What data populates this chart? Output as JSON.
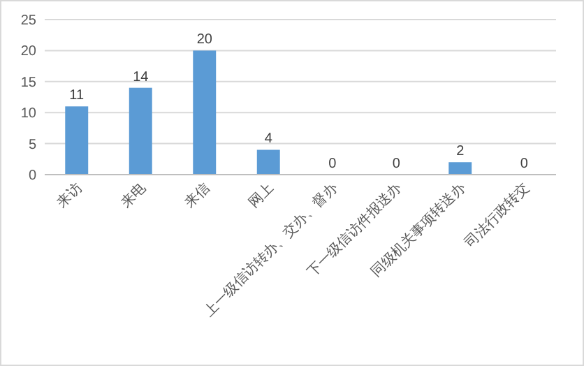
{
  "chart_data": {
    "type": "bar",
    "categories": [
      "来访",
      "来电",
      "来信",
      "网上",
      "上一级信访转办、交办、督办",
      "下一级信访件报送办",
      "同级机关事项转送办",
      "司法行政转交"
    ],
    "values": [
      11,
      14,
      20,
      4,
      0,
      0,
      2,
      0
    ],
    "color": "#5b9bd5",
    "ylim": [
      0,
      25
    ],
    "yticks": [
      0,
      5,
      10,
      15,
      20,
      25
    ],
    "grid": "y",
    "data_labels": true
  }
}
